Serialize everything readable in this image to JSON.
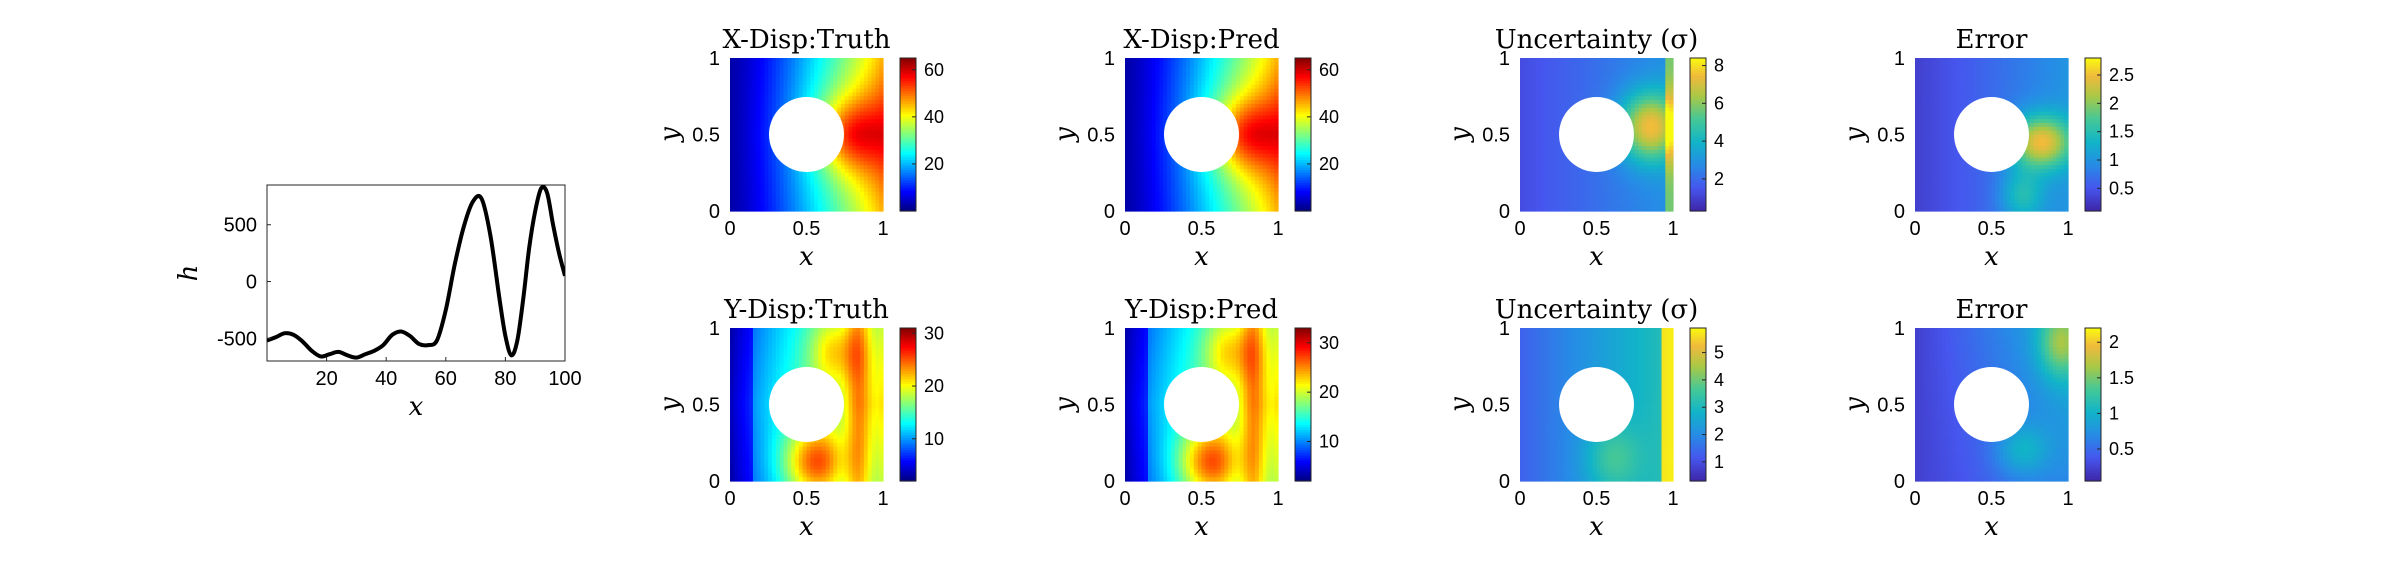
{
  "chart_data": [
    {
      "type": "line",
      "xlabel": "x",
      "ylabel": "h",
      "xlim": [
        0,
        100
      ],
      "ylim": [
        -700,
        850
      ],
      "xticks": [
        20,
        40,
        60,
        80,
        100
      ],
      "yticks": [
        -500,
        0,
        500
      ],
      "x": [
        0,
        3,
        6,
        9,
        12,
        15,
        18,
        21,
        24,
        27,
        30,
        33,
        36,
        39,
        42,
        45,
        48,
        51,
        54,
        57,
        60,
        63,
        66,
        69,
        72,
        75,
        78,
        80,
        82,
        84,
        86,
        88,
        90,
        92,
        94,
        96,
        98,
        100
      ],
      "values": [
        -520,
        -490,
        -455,
        -470,
        -530,
        -610,
        -660,
        -640,
        -620,
        -650,
        -670,
        -640,
        -610,
        -560,
        -470,
        -440,
        -480,
        -550,
        -560,
        -520,
        -250,
        150,
        480,
        700,
        730,
        400,
        -150,
        -480,
        -650,
        -520,
        -150,
        300,
        620,
        820,
        780,
        500,
        250,
        50
      ],
      "color": "#000000",
      "grid": false
    },
    {
      "type": "heatmap",
      "title": "X-Disp:Truth",
      "colormap": "jet",
      "field": "xdisp",
      "scale": 65,
      "xlabel": "x",
      "ylabel": "y",
      "xticks": [
        "0",
        "0.5",
        "1"
      ],
      "yticks": [
        "0",
        "0.5",
        "1"
      ],
      "colorbar": {
        "min": 0,
        "max": 65,
        "ticks": [
          20,
          40,
          60
        ]
      }
    },
    {
      "type": "heatmap",
      "title": "X-Disp:Pred",
      "colormap": "jet",
      "field": "xdisp",
      "scale": 65,
      "xlabel": "x",
      "ylabel": "y",
      "xticks": [
        "0",
        "0.5",
        "1"
      ],
      "yticks": [
        "0",
        "0.5",
        "1"
      ],
      "colorbar": {
        "min": 0,
        "max": 65,
        "ticks": [
          20,
          40,
          60
        ]
      }
    },
    {
      "type": "heatmap",
      "title": "Uncertainty (σ)",
      "colormap": "parula",
      "field": "uncx",
      "scale": 8.4,
      "xlabel": "x",
      "ylabel": "y",
      "xticks": [
        "0",
        "0.5",
        "1"
      ],
      "yticks": [
        "0",
        "0.5",
        "1"
      ],
      "colorbar": {
        "min": 0.3,
        "max": 8.4,
        "ticks": [
          2,
          4,
          6,
          8
        ]
      }
    },
    {
      "type": "heatmap",
      "title": "Error",
      "colormap": "parula",
      "field": "errx",
      "scale": 2.8,
      "xlabel": "x",
      "ylabel": "y",
      "xticks": [
        "0",
        "0.5",
        "1"
      ],
      "yticks": [
        "0",
        "0.5",
        "1"
      ],
      "colorbar": {
        "min": 0.1,
        "max": 2.8,
        "ticks": [
          0.5,
          1,
          1.5,
          2,
          2.5
        ]
      }
    },
    {
      "type": "heatmap",
      "title": "Y-Disp:Truth",
      "colormap": "jet",
      "field": "ydisp",
      "scale": 31,
      "xlabel": "x",
      "ylabel": "y",
      "xticks": [
        "0",
        "0.5",
        "1"
      ],
      "yticks": [
        "0",
        "0.5",
        "1"
      ],
      "colorbar": {
        "min": 2,
        "max": 31,
        "ticks": [
          10,
          20,
          30
        ]
      }
    },
    {
      "type": "heatmap",
      "title": "Y-Disp:Pred",
      "colormap": "jet",
      "field": "ydisp",
      "scale": 33,
      "xlabel": "x",
      "ylabel": "y",
      "xticks": [
        "0",
        "0.5",
        "1"
      ],
      "yticks": [
        "0",
        "0.5",
        "1"
      ],
      "colorbar": {
        "min": 2,
        "max": 33,
        "ticks": [
          10,
          20,
          30
        ]
      }
    },
    {
      "type": "heatmap",
      "title": "Uncertainty (σ)",
      "colormap": "parula",
      "field": "uncy",
      "scale": 5.9,
      "xlabel": "x",
      "ylabel": "y",
      "xticks": [
        "0",
        "0.5",
        "1"
      ],
      "yticks": [
        "0",
        "0.5",
        "1"
      ],
      "colorbar": {
        "min": 0.3,
        "max": 5.9,
        "ticks": [
          1,
          2,
          3,
          4,
          5
        ]
      }
    },
    {
      "type": "heatmap",
      "title": "Error",
      "colormap": "parula",
      "field": "erry",
      "scale": 2.2,
      "xlabel": "x",
      "ylabel": "y",
      "xticks": [
        "0",
        "0.5",
        "1"
      ],
      "yticks": [
        "0",
        "0.5",
        "1"
      ],
      "colorbar": {
        "min": 0.05,
        "max": 2.2,
        "ticks": [
          0.5,
          1,
          1.5,
          2
        ]
      }
    }
  ]
}
